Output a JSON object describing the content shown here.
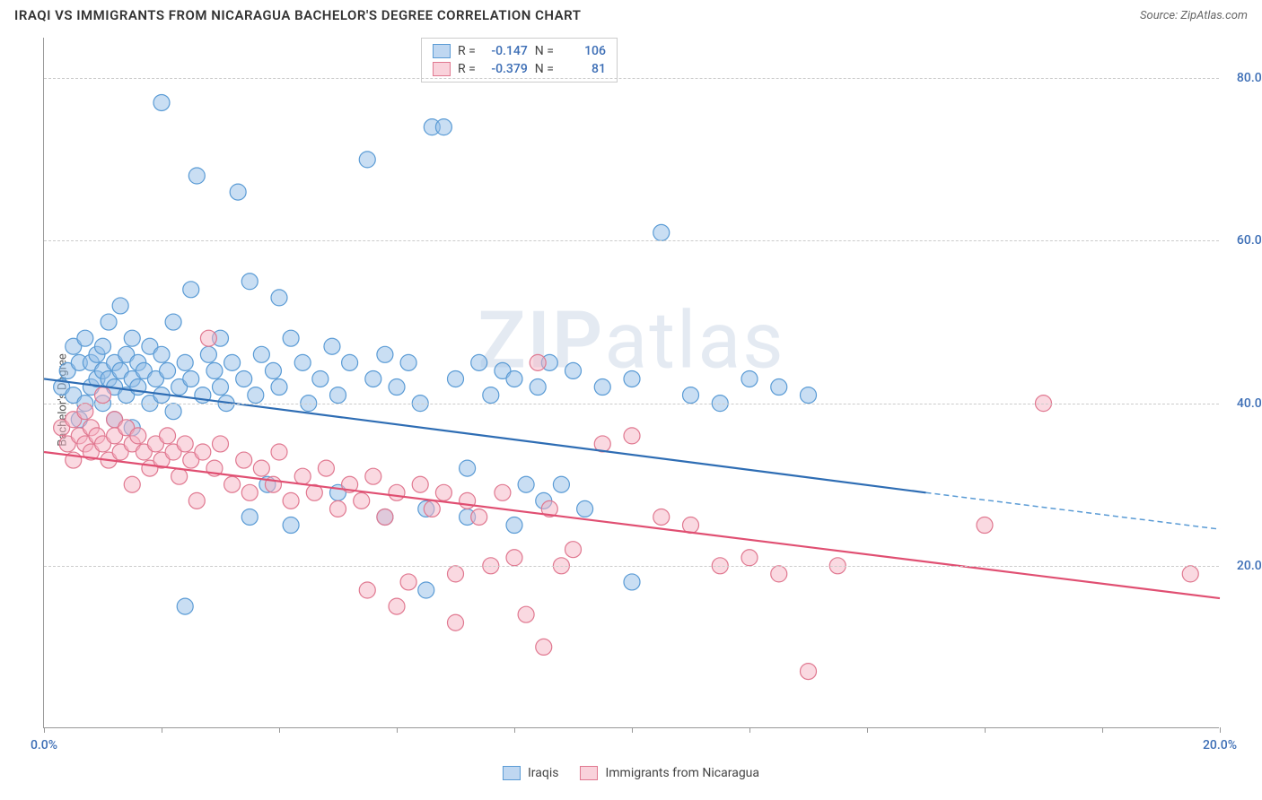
{
  "header": {
    "title": "IRAQI VS IMMIGRANTS FROM NICARAGUA BACHELOR'S DEGREE CORRELATION CHART",
    "source": "Source: ZipAtlas.com"
  },
  "chart": {
    "type": "scatter",
    "ylabel": "Bachelor's Degree",
    "xlim": [
      0,
      20
    ],
    "ylim": [
      0,
      85
    ],
    "yticks": [
      20,
      40,
      60,
      80
    ],
    "ytick_labels": [
      "20.0%",
      "40.0%",
      "60.0%",
      "80.0%"
    ],
    "xtick_positions": [
      0,
      2,
      4,
      6,
      8,
      10,
      12,
      14,
      16,
      18,
      20
    ],
    "xtick_labels_start": "0.0%",
    "xtick_labels_end": "20.0%",
    "background_color": "#ffffff",
    "grid_color": "#cccccc",
    "axis_color": "#999999",
    "marker_radius": 9,
    "watermark": "ZIPatlas",
    "series": [
      {
        "name": "Iraqis",
        "color_fill": "rgba(148,189,231,0.5)",
        "color_stroke": "#5a9bd5",
        "trend_color": "#2e6db4",
        "R": "-0.147",
        "N": "106",
        "trend": {
          "x1": 0,
          "y1": 43,
          "x2": 15,
          "y2": 29,
          "x2_dash": 20,
          "y2_dash": 24.5
        },
        "points": [
          [
            0.3,
            42
          ],
          [
            0.4,
            44
          ],
          [
            0.5,
            41
          ],
          [
            0.5,
            47
          ],
          [
            0.6,
            45
          ],
          [
            0.6,
            38
          ],
          [
            0.7,
            48
          ],
          [
            0.7,
            40
          ],
          [
            0.8,
            42
          ],
          [
            0.8,
            45
          ],
          [
            0.9,
            43
          ],
          [
            0.9,
            46
          ],
          [
            1.0,
            44
          ],
          [
            1.0,
            40
          ],
          [
            1.0,
            47
          ],
          [
            1.1,
            43
          ],
          [
            1.1,
            50
          ],
          [
            1.2,
            42
          ],
          [
            1.2,
            45
          ],
          [
            1.2,
            38
          ],
          [
            1.3,
            44
          ],
          [
            1.3,
            52
          ],
          [
            1.4,
            41
          ],
          [
            1.4,
            46
          ],
          [
            1.5,
            43
          ],
          [
            1.5,
            48
          ],
          [
            1.5,
            37
          ],
          [
            1.6,
            45
          ],
          [
            1.6,
            42
          ],
          [
            1.7,
            44
          ],
          [
            1.8,
            47
          ],
          [
            1.8,
            40
          ],
          [
            1.9,
            43
          ],
          [
            2.0,
            46
          ],
          [
            2.0,
            41
          ],
          [
            2.0,
            77
          ],
          [
            2.1,
            44
          ],
          [
            2.2,
            39
          ],
          [
            2.2,
            50
          ],
          [
            2.3,
            42
          ],
          [
            2.4,
            45
          ],
          [
            2.4,
            15
          ],
          [
            2.5,
            43
          ],
          [
            2.5,
            54
          ],
          [
            2.6,
            68
          ],
          [
            2.7,
            41
          ],
          [
            2.8,
            46
          ],
          [
            2.9,
            44
          ],
          [
            3.0,
            42
          ],
          [
            3.0,
            48
          ],
          [
            3.1,
            40
          ],
          [
            3.2,
            45
          ],
          [
            3.3,
            66
          ],
          [
            3.4,
            43
          ],
          [
            3.5,
            55
          ],
          [
            3.6,
            41
          ],
          [
            3.7,
            46
          ],
          [
            3.8,
            30
          ],
          [
            3.9,
            44
          ],
          [
            4.0,
            42
          ],
          [
            4.0,
            53
          ],
          [
            4.2,
            48
          ],
          [
            4.4,
            45
          ],
          [
            4.5,
            40
          ],
          [
            4.7,
            43
          ],
          [
            4.9,
            47
          ],
          [
            5.0,
            41
          ],
          [
            5.2,
            45
          ],
          [
            5.5,
            70
          ],
          [
            5.6,
            43
          ],
          [
            5.8,
            46
          ],
          [
            6.0,
            42
          ],
          [
            6.2,
            45
          ],
          [
            6.4,
            40
          ],
          [
            6.5,
            17
          ],
          [
            6.6,
            74
          ],
          [
            6.8,
            74
          ],
          [
            7.0,
            43
          ],
          [
            7.2,
            32
          ],
          [
            7.4,
            45
          ],
          [
            7.6,
            41
          ],
          [
            7.8,
            44
          ],
          [
            8.0,
            43
          ],
          [
            8.2,
            30
          ],
          [
            8.4,
            42
          ],
          [
            8.6,
            45
          ],
          [
            8.8,
            30
          ],
          [
            9.0,
            44
          ],
          [
            9.5,
            42
          ],
          [
            10.0,
            43
          ],
          [
            10.5,
            61
          ],
          [
            11.0,
            41
          ],
          [
            11.5,
            40
          ],
          [
            12.0,
            43
          ],
          [
            12.5,
            42
          ],
          [
            13.0,
            41
          ],
          [
            3.5,
            26
          ],
          [
            4.2,
            25
          ],
          [
            5.0,
            29
          ],
          [
            5.8,
            26
          ],
          [
            6.5,
            27
          ],
          [
            7.2,
            26
          ],
          [
            8.0,
            25
          ],
          [
            8.5,
            28
          ],
          [
            9.2,
            27
          ],
          [
            10.0,
            18
          ]
        ]
      },
      {
        "name": "Immigrants from Nicaragua",
        "color_fill": "rgba(245,180,195,0.5)",
        "color_stroke": "#e07890",
        "trend_color": "#e04f72",
        "R": "-0.379",
        "N": "81",
        "trend": {
          "x1": 0,
          "y1": 34,
          "x2": 20,
          "y2": 16
        },
        "points": [
          [
            0.3,
            37
          ],
          [
            0.4,
            35
          ],
          [
            0.5,
            38
          ],
          [
            0.5,
            33
          ],
          [
            0.6,
            36
          ],
          [
            0.7,
            35
          ],
          [
            0.7,
            39
          ],
          [
            0.8,
            34
          ],
          [
            0.8,
            37
          ],
          [
            0.9,
            36
          ],
          [
            1.0,
            35
          ],
          [
            1.0,
            41
          ],
          [
            1.1,
            33
          ],
          [
            1.2,
            36
          ],
          [
            1.2,
            38
          ],
          [
            1.3,
            34
          ],
          [
            1.4,
            37
          ],
          [
            1.5,
            35
          ],
          [
            1.5,
            30
          ],
          [
            1.6,
            36
          ],
          [
            1.7,
            34
          ],
          [
            1.8,
            32
          ],
          [
            1.9,
            35
          ],
          [
            2.0,
            33
          ],
          [
            2.1,
            36
          ],
          [
            2.2,
            34
          ],
          [
            2.3,
            31
          ],
          [
            2.4,
            35
          ],
          [
            2.5,
            33
          ],
          [
            2.6,
            28
          ],
          [
            2.7,
            34
          ],
          [
            2.8,
            48
          ],
          [
            2.9,
            32
          ],
          [
            3.0,
            35
          ],
          [
            3.2,
            30
          ],
          [
            3.4,
            33
          ],
          [
            3.5,
            29
          ],
          [
            3.7,
            32
          ],
          [
            3.9,
            30
          ],
          [
            4.0,
            34
          ],
          [
            4.2,
            28
          ],
          [
            4.4,
            31
          ],
          [
            4.6,
            29
          ],
          [
            4.8,
            32
          ],
          [
            5.0,
            27
          ],
          [
            5.2,
            30
          ],
          [
            5.4,
            28
          ],
          [
            5.6,
            31
          ],
          [
            5.8,
            26
          ],
          [
            6.0,
            29
          ],
          [
            6.2,
            18
          ],
          [
            6.4,
            30
          ],
          [
            6.6,
            27
          ],
          [
            6.8,
            29
          ],
          [
            7.0,
            19
          ],
          [
            7.2,
            28
          ],
          [
            7.4,
            26
          ],
          [
            7.6,
            20
          ],
          [
            7.8,
            29
          ],
          [
            8.0,
            21
          ],
          [
            8.2,
            14
          ],
          [
            8.4,
            45
          ],
          [
            8.6,
            27
          ],
          [
            8.8,
            20
          ],
          [
            9.0,
            22
          ],
          [
            9.5,
            35
          ],
          [
            10.0,
            36
          ],
          [
            10.5,
            26
          ],
          [
            11.0,
            25
          ],
          [
            11.5,
            20
          ],
          [
            12.0,
            21
          ],
          [
            12.5,
            19
          ],
          [
            13.0,
            7
          ],
          [
            13.5,
            20
          ],
          [
            16.0,
            25
          ],
          [
            17.0,
            40
          ],
          [
            19.5,
            19
          ],
          [
            5.5,
            17
          ],
          [
            6.0,
            15
          ],
          [
            7.0,
            13
          ],
          [
            8.5,
            10
          ]
        ]
      }
    ],
    "legend_box": {
      "R_label": "R =",
      "N_label": "N ="
    },
    "bottom_legend": [
      "Iraqis",
      "Immigrants from Nicaragua"
    ]
  }
}
